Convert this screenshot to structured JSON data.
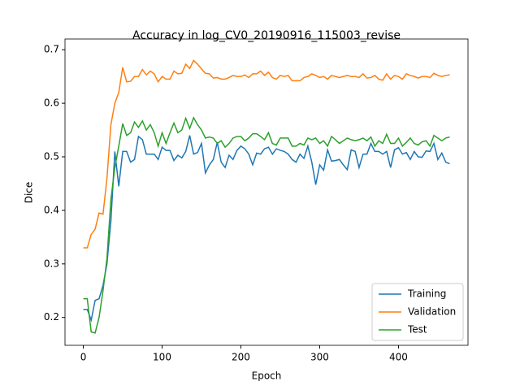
{
  "chart_data": {
    "type": "line",
    "title": "Accuracy in log_CV0_20190916_115003_revise",
    "x_label": "Epoch",
    "y_label": "Dice",
    "x": [
      0,
      5,
      10,
      15,
      20,
      25,
      30,
      35,
      40,
      45,
      50,
      55,
      60,
      65,
      70,
      75,
      80,
      85,
      90,
      95,
      100,
      105,
      110,
      115,
      120,
      125,
      130,
      135,
      140,
      145,
      150,
      155,
      160,
      165,
      170,
      175,
      180,
      185,
      190,
      195,
      200,
      205,
      210,
      215,
      220,
      225,
      230,
      235,
      240,
      245,
      250,
      255,
      260,
      265,
      270,
      275,
      280,
      285,
      290,
      295,
      300,
      305,
      310,
      315,
      320,
      325,
      330,
      335,
      340,
      345,
      350,
      355,
      360,
      365,
      370,
      375,
      380,
      385,
      390,
      395,
      400,
      405,
      410,
      415,
      420,
      425,
      430,
      435,
      440,
      445,
      450,
      455,
      460,
      465
    ],
    "series": [
      {
        "name": "Training",
        "color": "#1f77b4",
        "values": [
          0.215,
          0.215,
          0.195,
          0.232,
          0.235,
          0.26,
          0.3,
          0.38,
          0.51,
          0.445,
          0.51,
          0.51,
          0.49,
          0.495,
          0.538,
          0.532,
          0.505,
          0.505,
          0.505,
          0.495,
          0.518,
          0.512,
          0.512,
          0.493,
          0.503,
          0.498,
          0.51,
          0.54,
          0.505,
          0.508,
          0.525,
          0.47,
          0.485,
          0.495,
          0.527,
          0.49,
          0.48,
          0.503,
          0.495,
          0.512,
          0.52,
          0.515,
          0.505,
          0.485,
          0.507,
          0.505,
          0.515,
          0.518,
          0.505,
          0.515,
          0.512,
          0.51,
          0.505,
          0.495,
          0.49,
          0.505,
          0.497,
          0.52,
          0.49,
          0.448,
          0.485,
          0.475,
          0.513,
          0.492,
          0.493,
          0.495,
          0.485,
          0.476,
          0.513,
          0.51,
          0.48,
          0.505,
          0.505,
          0.525,
          0.51,
          0.51,
          0.505,
          0.51,
          0.48,
          0.513,
          0.517,
          0.505,
          0.508,
          0.495,
          0.51,
          0.5,
          0.499,
          0.511,
          0.51,
          0.525,
          0.495,
          0.507,
          0.49,
          0.487
        ]
      },
      {
        "name": "Validation",
        "color": "#ff7f0e",
        "values": [
          0.33,
          0.33,
          0.355,
          0.365,
          0.395,
          0.393,
          0.46,
          0.56,
          0.6,
          0.62,
          0.667,
          0.64,
          0.641,
          0.65,
          0.65,
          0.663,
          0.653,
          0.66,
          0.655,
          0.64,
          0.65,
          0.645,
          0.645,
          0.66,
          0.655,
          0.656,
          0.673,
          0.665,
          0.68,
          0.673,
          0.664,
          0.656,
          0.655,
          0.647,
          0.648,
          0.645,
          0.645,
          0.648,
          0.652,
          0.65,
          0.65,
          0.653,
          0.648,
          0.655,
          0.655,
          0.66,
          0.652,
          0.658,
          0.648,
          0.645,
          0.652,
          0.65,
          0.652,
          0.642,
          0.642,
          0.642,
          0.648,
          0.65,
          0.655,
          0.652,
          0.648,
          0.65,
          0.645,
          0.652,
          0.65,
          0.648,
          0.65,
          0.652,
          0.65,
          0.65,
          0.648,
          0.655,
          0.647,
          0.648,
          0.652,
          0.645,
          0.643,
          0.655,
          0.645,
          0.652,
          0.65,
          0.645,
          0.655,
          0.652,
          0.65,
          0.647,
          0.65,
          0.65,
          0.648,
          0.656,
          0.652,
          0.65,
          0.652,
          0.653
        ]
      },
      {
        "name": "Test",
        "color": "#2ca02c",
        "values": [
          0.235,
          0.235,
          0.173,
          0.171,
          0.2,
          0.25,
          0.31,
          0.42,
          0.48,
          0.52,
          0.562,
          0.54,
          0.545,
          0.565,
          0.555,
          0.567,
          0.55,
          0.56,
          0.545,
          0.52,
          0.545,
          0.525,
          0.545,
          0.563,
          0.545,
          0.55,
          0.572,
          0.553,
          0.573,
          0.56,
          0.55,
          0.535,
          0.537,
          0.535,
          0.525,
          0.53,
          0.518,
          0.525,
          0.535,
          0.538,
          0.538,
          0.53,
          0.535,
          0.543,
          0.543,
          0.538,
          0.532,
          0.545,
          0.525,
          0.522,
          0.535,
          0.535,
          0.535,
          0.52,
          0.52,
          0.525,
          0.522,
          0.535,
          0.532,
          0.535,
          0.525,
          0.53,
          0.52,
          0.538,
          0.532,
          0.525,
          0.53,
          0.535,
          0.532,
          0.53,
          0.532,
          0.535,
          0.53,
          0.537,
          0.52,
          0.53,
          0.525,
          0.542,
          0.525,
          0.525,
          0.535,
          0.52,
          0.527,
          0.535,
          0.525,
          0.522,
          0.528,
          0.53,
          0.52,
          0.54,
          0.535,
          0.53,
          0.535,
          0.537
        ]
      }
    ],
    "xlim": [
      -23.25,
      488.25
    ],
    "ylim": [
      0.148,
      0.72
    ],
    "xticks": [
      0,
      100,
      200,
      300,
      400
    ],
    "yticks": [
      0.2,
      0.3,
      0.4,
      0.5,
      0.6,
      0.7
    ],
    "legend": "lower right"
  }
}
